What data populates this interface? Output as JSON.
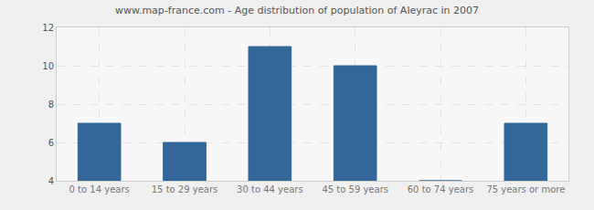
{
  "chart_data": {
    "type": "bar",
    "title": "www.map-france.com - Age distribution of population of Aleyrac in 2007",
    "categories": [
      "0 to 14 years",
      "15 to 29 years",
      "30 to 44 years",
      "45 to 59 years",
      "60 to 74 years",
      "75 years or more"
    ],
    "values": [
      7,
      6,
      11,
      10,
      4,
      7
    ],
    "color": "#336699",
    "ylim": [
      4,
      12
    ],
    "yticks": [
      4,
      6,
      8,
      10,
      12
    ],
    "grid": true
  }
}
